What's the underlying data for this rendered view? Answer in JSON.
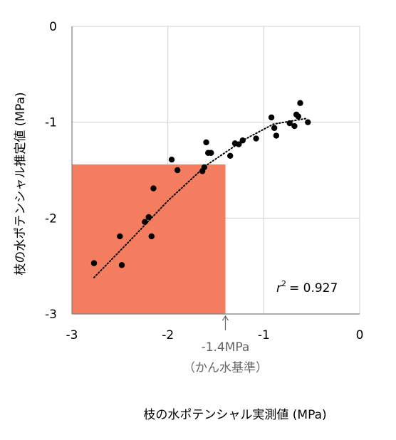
{
  "chart_data": {
    "type": "scatter",
    "xlabel": "枝の水ポテンシャル実測値 (MPa)",
    "ylabel": "枝の水ポテンシャル推定値 (MPa)",
    "xlim": [
      -3,
      0
    ],
    "ylim": [
      -3,
      0
    ],
    "xticks": [
      "-3",
      "-2",
      "-1",
      "0"
    ],
    "yticks": [
      "0",
      "-1",
      "-2",
      "-3"
    ],
    "grid": true,
    "points": [
      {
        "x": -2.77,
        "y": -2.47
      },
      {
        "x": -2.48,
        "y": -2.49
      },
      {
        "x": -2.5,
        "y": -2.19
      },
      {
        "x": -2.24,
        "y": -2.04
      },
      {
        "x": -2.2,
        "y": -1.99
      },
      {
        "x": -2.17,
        "y": -2.19
      },
      {
        "x": -2.15,
        "y": -1.69
      },
      {
        "x": -1.9,
        "y": -1.5
      },
      {
        "x": -1.96,
        "y": -1.39
      },
      {
        "x": -1.64,
        "y": -1.51
      },
      {
        "x": -1.62,
        "y": -1.47
      },
      {
        "x": -1.6,
        "y": -1.21
      },
      {
        "x": -1.58,
        "y": -1.32
      },
      {
        "x": -1.55,
        "y": -1.32
      },
      {
        "x": -1.35,
        "y": -1.35
      },
      {
        "x": -1.3,
        "y": -1.22
      },
      {
        "x": -1.26,
        "y": -1.23
      },
      {
        "x": -1.22,
        "y": -1.19
      },
      {
        "x": -1.08,
        "y": -1.17
      },
      {
        "x": -0.92,
        "y": -0.95
      },
      {
        "x": -0.89,
        "y": -1.06
      },
      {
        "x": -0.87,
        "y": -1.14
      },
      {
        "x": -0.73,
        "y": -1.01
      },
      {
        "x": -0.68,
        "y": -1.04
      },
      {
        "x": -0.66,
        "y": -0.92
      },
      {
        "x": -0.64,
        "y": -0.94
      },
      {
        "x": -0.62,
        "y": -0.8
      },
      {
        "x": -0.54,
        "y": -1.0
      }
    ],
    "trendline": {
      "type": "polynomial",
      "style": "dotted",
      "points": [
        {
          "x": -2.77,
          "y": -2.62
        },
        {
          "x": -2.4,
          "y": -2.24
        },
        {
          "x": -2.0,
          "y": -1.82
        },
        {
          "x": -1.6,
          "y": -1.45
        },
        {
          "x": -1.2,
          "y": -1.18
        },
        {
          "x": -0.9,
          "y": -1.02
        },
        {
          "x": -0.55,
          "y": -0.96
        }
      ]
    },
    "annotation": {
      "r2_symbol": "r",
      "r2_sup": "2",
      "r2_value": "= 0.927"
    },
    "highlight": {
      "x0": -3,
      "x1": -1.4,
      "y0": -3,
      "y1": -1.44,
      "color": "#F47C5F"
    },
    "threshold": {
      "x": -1.4,
      "label_line1": "-1.4MPa",
      "label_line2": "（かん水基準）"
    },
    "colors": {
      "point": "#000000",
      "grid": "#d0d0d0",
      "axis": "#7f7f7f"
    }
  }
}
